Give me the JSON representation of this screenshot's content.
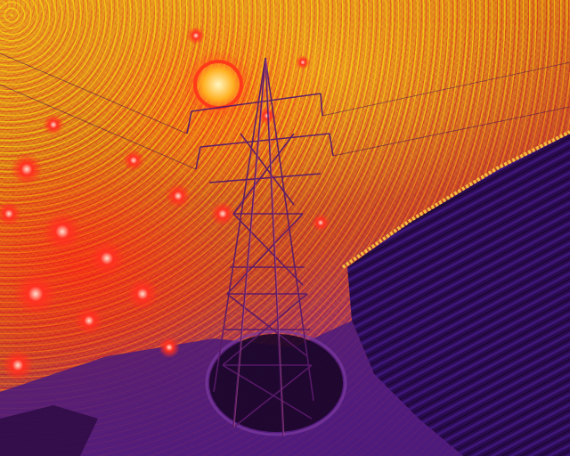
{
  "image": {
    "subject": "thermal-aerial-transmission-tower",
    "palette": {
      "hot": "#ff2a1a",
      "warm": "#f2c230",
      "mid": "#d06a20",
      "cool": "#3a1470",
      "cold": "#1e0836"
    }
  }
}
